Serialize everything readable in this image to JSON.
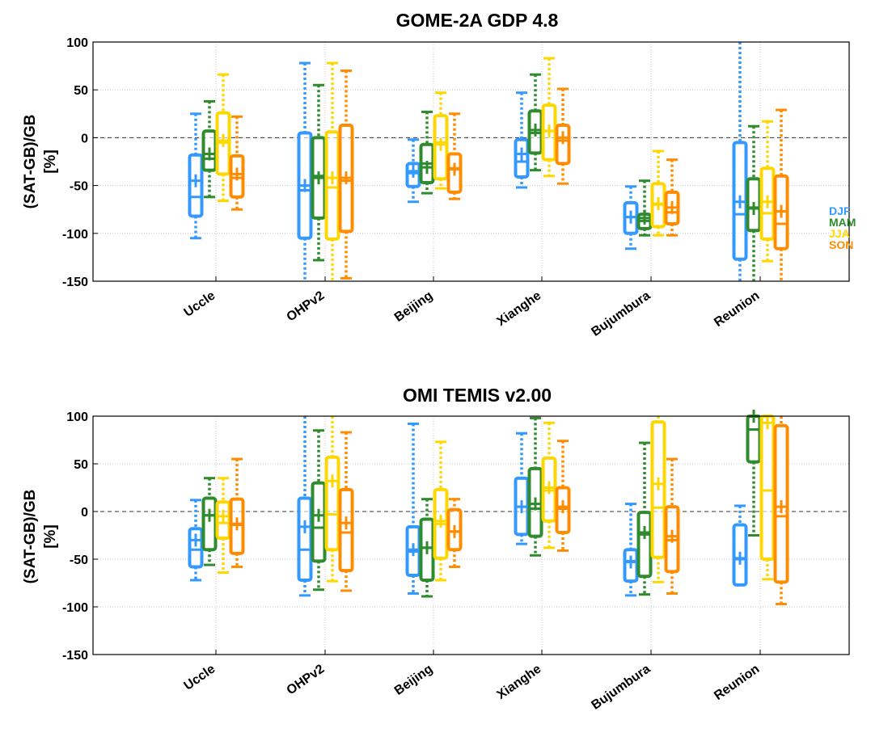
{
  "colors": {
    "DJF": "#3399ff",
    "MAM": "#2e8b2e",
    "JJA": "#ffd700",
    "SON": "#ff8c00"
  },
  "chart_data": [
    {
      "type": "box",
      "title": "GOME-2A GDP 4.8",
      "ylabel": [
        "(SAT-GB)/GB",
        "[%]"
      ],
      "ylim": [
        -150,
        100
      ],
      "yticks": [
        100,
        50,
        0,
        -50,
        -100,
        -150
      ],
      "categories": [
        "Uccle",
        "OHPv2",
        "Beijing",
        "Xianghe",
        "Bujumbura",
        "Reunion"
      ],
      "legend": [
        "DJF",
        "MAM",
        "JJA",
        "SON"
      ],
      "legend_position": "right",
      "grid": true,
      "series": [
        {
          "name": "DJF",
          "boxes": [
            {
              "whislo": -105,
              "q1": -82,
              "med": -62,
              "q3": -18,
              "whishi": 25,
              "mean": -45
            },
            {
              "whislo": -150,
              "q1": -105,
              "med": -55,
              "q3": 5,
              "whishi": 78,
              "mean": -50
            },
            {
              "whislo": -67,
              "q1": -51,
              "med": -37,
              "q3": -27,
              "whishi": -2,
              "mean": -35
            },
            {
              "whislo": -52,
              "q1": -41,
              "med": -25,
              "q3": -2,
              "whishi": 47,
              "mean": -17
            },
            {
              "whislo": -116,
              "q1": -100,
              "med": -83,
              "q3": -68,
              "whishi": -51,
              "mean": -83
            },
            {
              "whislo": -150,
              "q1": -127,
              "med": -80,
              "q3": -5,
              "whishi": 100,
              "mean": -67
            }
          ]
        },
        {
          "name": "MAM",
          "boxes": [
            {
              "whislo": -62,
              "q1": -34,
              "med": -22,
              "q3": 7,
              "whishi": 38,
              "mean": -17
            },
            {
              "whislo": -128,
              "q1": -84,
              "med": -40,
              "q3": 0,
              "whishi": 55,
              "mean": -42
            },
            {
              "whislo": -58,
              "q1": -47,
              "med": -27,
              "q3": -7,
              "whishi": 27,
              "mean": -31
            },
            {
              "whislo": -34,
              "q1": -16,
              "med": 5,
              "q3": 28,
              "whishi": 66,
              "mean": 8
            },
            {
              "whislo": -102,
              "q1": -95,
              "med": -87,
              "q3": -80,
              "whishi": -45,
              "mean": -84
            },
            {
              "whislo": -150,
              "q1": -97,
              "med": -73,
              "q3": -43,
              "whishi": 12,
              "mean": -74
            }
          ]
        },
        {
          "name": "JJA",
          "boxes": [
            {
              "whislo": -66,
              "q1": -38,
              "med": -5,
              "q3": 26,
              "whishi": 66,
              "mean": -3
            },
            {
              "whislo": -150,
              "q1": -106,
              "med": -52,
              "q3": 6,
              "whishi": 78,
              "mean": -42
            },
            {
              "whislo": -53,
              "q1": -43,
              "med": -5,
              "q3": 23,
              "whishi": 47,
              "mean": -7
            },
            {
              "whislo": -40,
              "q1": -23,
              "med": 7,
              "q3": 34,
              "whishi": 83,
              "mean": 7
            },
            {
              "whislo": -102,
              "q1": -93,
              "med": -70,
              "q3": -48,
              "whishi": -14,
              "mean": -69
            },
            {
              "whislo": -129,
              "q1": -106,
              "med": -79,
              "q3": -32,
              "whishi": 17,
              "mean": -67
            }
          ]
        },
        {
          "name": "SON",
          "boxes": [
            {
              "whislo": -75,
              "q1": -62,
              "med": -42,
              "q3": -19,
              "whishi": 22,
              "mean": -38
            },
            {
              "whislo": -147,
              "q1": -98,
              "med": -45,
              "q3": 13,
              "whishi": 70,
              "mean": -42
            },
            {
              "whislo": -64,
              "q1": -57,
              "med": -32,
              "q3": -17,
              "whishi": 25,
              "mean": -33
            },
            {
              "whislo": -48,
              "q1": -27,
              "med": -3,
              "q3": 13,
              "whishi": 51,
              "mean": 0
            },
            {
              "whislo": -102,
              "q1": -90,
              "med": -78,
              "q3": -57,
              "whishi": -23,
              "mean": -73
            },
            {
              "whislo": -150,
              "q1": -116,
              "med": -90,
              "q3": -40,
              "whishi": 29,
              "mean": -77
            }
          ]
        }
      ]
    },
    {
      "type": "box",
      "title": "OMI TEMIS v2.00",
      "ylabel": [
        "(SAT-GB)/GB",
        "[%]"
      ],
      "ylim": [
        -150,
        100
      ],
      "yticks": [
        100,
        50,
        0,
        -50,
        -100,
        -150
      ],
      "categories": [
        "Uccle",
        "OHPv2",
        "Beijing",
        "Xianghe",
        "Bujumbura",
        "Reunion"
      ],
      "grid": true,
      "series": [
        {
          "name": "DJF",
          "boxes": [
            {
              "whislo": -72,
              "q1": -58,
              "med": -40,
              "q3": -18,
              "whishi": 12,
              "mean": -30
            },
            {
              "whislo": -88,
              "q1": -72,
              "med": -40,
              "q3": 14,
              "whishi": 100,
              "mean": -16
            },
            {
              "whislo": -86,
              "q1": -67,
              "med": -42,
              "q3": -16,
              "whishi": 92,
              "mean": -40
            },
            {
              "whislo": -34,
              "q1": -24,
              "med": 5,
              "q3": 35,
              "whishi": 82,
              "mean": 5
            },
            {
              "whislo": -88,
              "q1": -73,
              "med": -52,
              "q3": -40,
              "whishi": 8,
              "mean": -53
            },
            {
              "whislo": -77,
              "q1": -77,
              "med": -50,
              "q3": -14,
              "whishi": 6,
              "mean": -49
            }
          ]
        },
        {
          "name": "MAM",
          "boxes": [
            {
              "whislo": -56,
              "q1": -40,
              "med": -4,
              "q3": 14,
              "whishi": 35,
              "mean": -4
            },
            {
              "whislo": -82,
              "q1": -52,
              "med": -17,
              "q3": 30,
              "whishi": 85,
              "mean": -4
            },
            {
              "whislo": -89,
              "q1": -72,
              "med": -38,
              "q3": -8,
              "whishi": 13,
              "mean": -38
            },
            {
              "whislo": -46,
              "q1": -26,
              "med": 3,
              "q3": 45,
              "whishi": 98,
              "mean": 8
            },
            {
              "whislo": -87,
              "q1": -68,
              "med": -24,
              "q3": -1,
              "whishi": 72,
              "mean": -22
            },
            {
              "whislo": -25,
              "q1": 52,
              "med": 86,
              "q3": 100,
              "whishi": 100,
              "mean": 100
            }
          ]
        },
        {
          "name": "JJA",
          "boxes": [
            {
              "whislo": -64,
              "q1": -28,
              "med": -12,
              "q3": 10,
              "whishi": 35,
              "mean": -5
            },
            {
              "whislo": -73,
              "q1": -40,
              "med": -3,
              "q3": 57,
              "whishi": 100,
              "mean": 32
            },
            {
              "whislo": -72,
              "q1": -49,
              "med": -13,
              "q3": 23,
              "whishi": 73,
              "mean": -10
            },
            {
              "whislo": -38,
              "q1": -10,
              "med": 22,
              "q3": 56,
              "whishi": 93,
              "mean": 25
            },
            {
              "whislo": -74,
              "q1": -48,
              "med": 4,
              "q3": 94,
              "whishi": 100,
              "mean": 29
            },
            {
              "whislo": -71,
              "q1": -50,
              "med": 22,
              "q3": 100,
              "whishi": 100,
              "mean": 93
            }
          ]
        },
        {
          "name": "SON",
          "boxes": [
            {
              "whislo": -58,
              "q1": -44,
              "med": -14,
              "q3": 13,
              "whishi": 55,
              "mean": -13
            },
            {
              "whislo": -83,
              "q1": -62,
              "med": -22,
              "q3": 23,
              "whishi": 83,
              "mean": -12
            },
            {
              "whislo": -58,
              "q1": -40,
              "med": -21,
              "q3": 2,
              "whishi": 13,
              "mean": -21
            },
            {
              "whislo": -41,
              "q1": -22,
              "med": 3,
              "q3": 25,
              "whishi": 74,
              "mean": 5
            },
            {
              "whislo": -86,
              "q1": -63,
              "med": -30,
              "q3": 5,
              "whishi": 55,
              "mean": -26
            },
            {
              "whislo": -97,
              "q1": -74,
              "med": -5,
              "q3": 90,
              "whishi": 100,
              "mean": 5
            }
          ]
        }
      ]
    }
  ]
}
